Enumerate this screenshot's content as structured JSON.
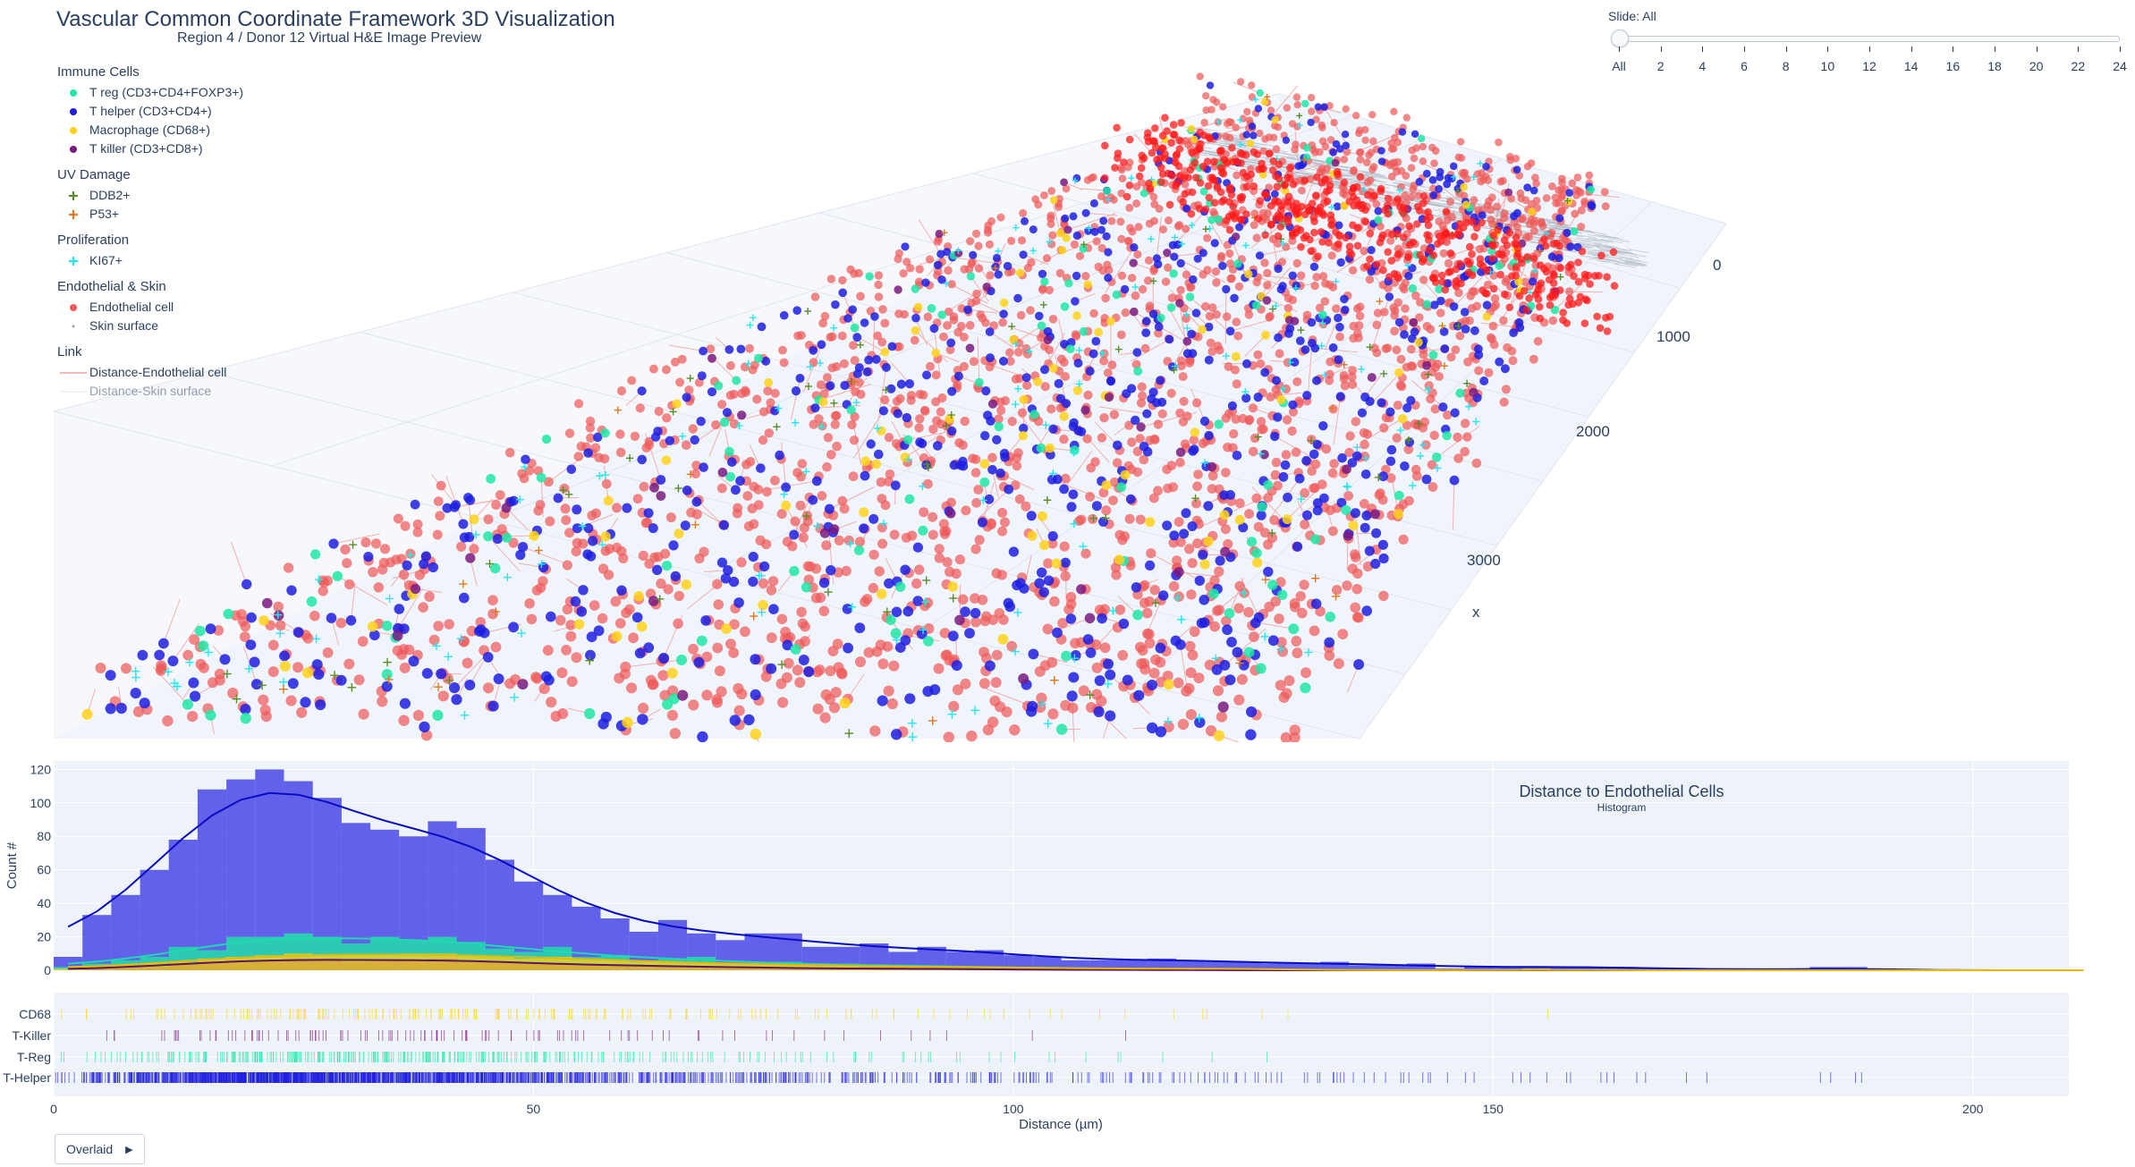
{
  "header": {
    "title": "Vascular Common Coordinate Framework 3D Visualization",
    "subtitle": "Region 4 / Donor 12  Virtual H&E Image Preview"
  },
  "legend": {
    "groups": [
      {
        "title": "Immune Cells",
        "items": [
          {
            "label": "T reg (CD3+CD4+FOXP3+)",
            "symbol": "dot-icon",
            "color": "#1fe8a4"
          },
          {
            "label": "T helper (CD3+CD4+)",
            "symbol": "dot-icon",
            "color": "#1d1ee0"
          },
          {
            "label": "Macrophage (CD68+)",
            "symbol": "dot-icon",
            "color": "#ffd21a"
          },
          {
            "label": "T killer (CD3+CD8+)",
            "symbol": "dot-icon",
            "color": "#7a1a7f"
          }
        ]
      },
      {
        "title": "UV Damage",
        "items": [
          {
            "label": "DDB2+",
            "symbol": "cross-icon",
            "color": "#5b8c2a"
          },
          {
            "label": "P53+",
            "symbol": "cross-icon",
            "color": "#e07a22"
          }
        ]
      },
      {
        "title": "Proliferation",
        "items": [
          {
            "label": "KI67+",
            "symbol": "cross-icon",
            "color": "#27e6f0"
          }
        ]
      },
      {
        "title": "Endothelial & Skin",
        "items": [
          {
            "label": "Endothelial cell",
            "symbol": "dot-icon",
            "color": "#ef5a5a"
          },
          {
            "label": "Skin surface",
            "symbol": "small-dot-icon",
            "color": "#9aa3ad"
          }
        ]
      },
      {
        "title": "Link",
        "items": [
          {
            "label": "Distance-Endothelial cell",
            "symbol": "line-icon",
            "color": "#f2a0a0"
          },
          {
            "label": "Distance-Skin surface",
            "symbol": "line-icon",
            "color": "#d9dde3",
            "dimmed": true
          }
        ]
      }
    ]
  },
  "slider": {
    "label": "Slide: All",
    "ticks": [
      "All",
      "2",
      "4",
      "6",
      "8",
      "10",
      "12",
      "14",
      "16",
      "18",
      "20",
      "22",
      "24"
    ]
  },
  "controls": {
    "overlaid_label": "Overlaid"
  },
  "colors": {
    "plot_bg": "#e5ecf6",
    "plot_bg_light": "#eef3fa",
    "grid": "#ffffff",
    "t_helper": "#1d1ee0",
    "t_reg": "#1fe8a4",
    "t_killer": "#7a1a7f",
    "macrophage": "#ffd21a",
    "endothelial": "#ef5a5a"
  },
  "chart_data": [
    {
      "type": "scatter3d",
      "axis_title": "x",
      "axis_ticks": [
        "0",
        "1000",
        "2000",
        "3000"
      ],
      "series": [
        {
          "name": "T reg (CD3+CD4+FOXP3+)",
          "approx_count": 140
        },
        {
          "name": "T helper (CD3+CD4+)",
          "approx_count": 700
        },
        {
          "name": "Macrophage (CD68+)",
          "approx_count": 110
        },
        {
          "name": "T killer (CD3+CD8+)",
          "approx_count": 60
        },
        {
          "name": "DDB2+",
          "approx_count": 70
        },
        {
          "name": "P53+",
          "approx_count": 30
        },
        {
          "name": "KI67+",
          "approx_count": 160
        },
        {
          "name": "Endothelial cell",
          "approx_count": 2000
        },
        {
          "name": "Skin surface",
          "approx_count": 0
        }
      ]
    },
    {
      "type": "bar",
      "title": "Distance to Endothelial Cells",
      "subtitle": "Histogram",
      "xlabel": "Distance (µm)",
      "ylabel": "Count #",
      "xlim": [
        0,
        210
      ],
      "ylim": [
        0,
        125
      ],
      "xticks": [
        0,
        50,
        100,
        150,
        200
      ],
      "yticks": [
        0,
        20,
        40,
        60,
        80,
        100,
        120
      ],
      "bin_width": 3,
      "bin_start": 0,
      "barmode": "overlay",
      "series": [
        {
          "name": "T-Helper",
          "color": "#1d1ee0",
          "opacity": 0.68,
          "values": [
            8,
            33,
            45,
            60,
            78,
            108,
            114,
            120,
            113,
            103,
            88,
            84,
            80,
            89,
            85,
            66,
            53,
            45,
            38,
            31,
            23,
            30,
            22,
            18,
            22,
            22,
            14,
            14,
            16,
            11,
            14,
            11,
            12,
            9,
            8,
            6,
            6,
            6,
            7,
            6,
            5,
            5,
            4,
            4,
            5,
            3,
            3,
            4,
            1,
            2,
            2,
            2,
            2,
            2,
            2,
            1,
            1,
            1,
            0,
            0,
            0,
            2,
            2,
            0,
            0,
            0,
            0,
            0,
            0,
            0,
            0
          ]
        },
        {
          "name": "T-Reg",
          "color": "#1fe8a4",
          "opacity": 0.78,
          "values": [
            2,
            4,
            6,
            8,
            14,
            12,
            20,
            20,
            22,
            20,
            16,
            20,
            18,
            20,
            17,
            13,
            11,
            14,
            8,
            9,
            6,
            7,
            8,
            4,
            4,
            5,
            3,
            4,
            2,
            3,
            3,
            2,
            2,
            1,
            2,
            1,
            1,
            1,
            1,
            0,
            1,
            0,
            1,
            0,
            0,
            0,
            0,
            0,
            0,
            0,
            0,
            0,
            0,
            0,
            0,
            0,
            0,
            0,
            0,
            0,
            0,
            0,
            0,
            0,
            0,
            0,
            0,
            0,
            0,
            0,
            0
          ]
        },
        {
          "name": "T-Killer",
          "color": "#7a1a7f",
          "opacity": 0.7,
          "values": [
            0,
            1,
            2,
            2,
            4,
            5,
            6,
            6,
            7,
            7,
            5,
            6,
            6,
            7,
            6,
            5,
            4,
            4,
            3,
            3,
            3,
            2,
            2,
            2,
            2,
            1,
            1,
            1,
            1,
            1,
            1,
            1,
            0,
            1,
            0,
            0,
            0,
            1,
            0,
            0,
            0,
            0,
            0,
            0,
            0,
            0,
            0,
            0,
            0,
            0,
            0,
            0,
            0,
            0,
            0,
            0,
            0,
            0,
            0,
            0,
            0,
            0,
            0,
            0,
            0,
            0,
            0,
            0,
            0,
            0,
            0
          ]
        },
        {
          "name": "CD68",
          "color": "#ffd21a",
          "opacity": 0.75,
          "values": [
            1,
            2,
            3,
            4,
            5,
            7,
            8,
            9,
            10,
            9,
            9,
            9,
            10,
            10,
            9,
            8,
            7,
            8,
            7,
            6,
            5,
            5,
            4,
            4,
            4,
            3,
            3,
            3,
            2,
            2,
            2,
            2,
            2,
            2,
            1,
            1,
            1,
            1,
            1,
            1,
            1,
            1,
            1,
            0,
            0,
            0,
            0,
            0,
            0,
            0,
            0,
            1,
            0,
            0,
            0,
            0,
            0,
            0,
            0,
            0,
            0,
            0,
            0,
            0,
            0,
            0,
            0,
            0,
            0,
            0,
            0
          ]
        }
      ],
      "kde_lines": [
        {
          "name": "T-Helper",
          "color": "#0a0cc4"
        },
        {
          "name": "T-Reg",
          "color": "#1fd8b0"
        },
        {
          "name": "T-Killer",
          "color": "#5e1363"
        },
        {
          "name": "CD68",
          "color": "#e8b800"
        }
      ]
    },
    {
      "type": "rug",
      "categories": [
        "CD68",
        "T-Killer",
        "T-Reg",
        "T-Helper"
      ],
      "xlim": [
        0,
        210
      ]
    }
  ]
}
